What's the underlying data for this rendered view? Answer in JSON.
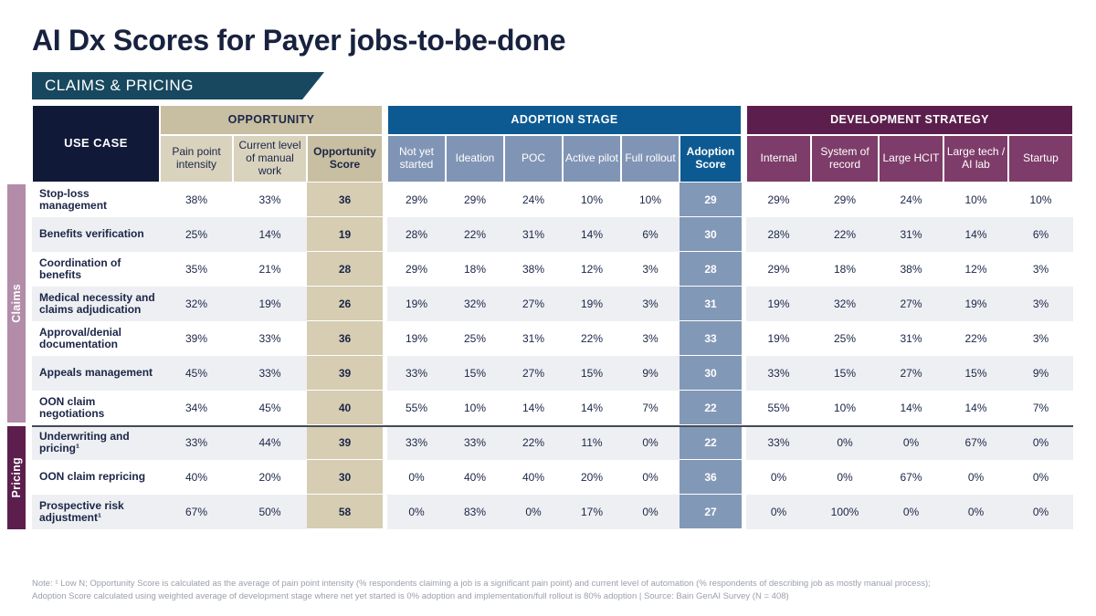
{
  "title": "AI Dx Scores for Payer jobs-to-be-done",
  "banner_label": "CLAIMS & PRICING",
  "chart_data": {
    "type": "table",
    "use_case_header": "USE CASE",
    "column_groups": [
      {
        "label": "OPPORTUNITY",
        "columns": [
          "Pain point intensity",
          "Current level of manual work",
          "Opportunity Score"
        ]
      },
      {
        "label": "ADOPTION STAGE",
        "columns": [
          "Not yet started",
          "Ideation",
          "POC",
          "Active pilot",
          "Full rollout",
          "Adoption Score"
        ]
      },
      {
        "label": "DEVELOPMENT STRATEGY",
        "columns": [
          "Internal",
          "System of record",
          "Large HCIT",
          "Large tech / AI lab",
          "Startup"
        ]
      }
    ],
    "sections": [
      {
        "label": "Claims",
        "rows": [
          {
            "use_case": "Stop-loss management",
            "pain_point_intensity": "38%",
            "current_level_manual_work": "33%",
            "opportunity_score": "36",
            "adoption_stages": [
              "29%",
              "29%",
              "24%",
              "10%",
              "10%"
            ],
            "adoption_score": "29",
            "development_strategy": [
              "29%",
              "29%",
              "24%",
              "10%",
              "10%"
            ]
          },
          {
            "use_case": "Benefits verification",
            "pain_point_intensity": "25%",
            "current_level_manual_work": "14%",
            "opportunity_score": "19",
            "adoption_stages": [
              "28%",
              "22%",
              "31%",
              "14%",
              "6%"
            ],
            "adoption_score": "30",
            "development_strategy": [
              "28%",
              "22%",
              "31%",
              "14%",
              "6%"
            ]
          },
          {
            "use_case": "Coordination of benefits",
            "pain_point_intensity": "35%",
            "current_level_manual_work": "21%",
            "opportunity_score": "28",
            "adoption_stages": [
              "29%",
              "18%",
              "38%",
              "12%",
              "3%"
            ],
            "adoption_score": "28",
            "development_strategy": [
              "29%",
              "18%",
              "38%",
              "12%",
              "3%"
            ]
          },
          {
            "use_case": "Medical necessity and claims adjudication",
            "pain_point_intensity": "32%",
            "current_level_manual_work": "19%",
            "opportunity_score": "26",
            "adoption_stages": [
              "19%",
              "32%",
              "27%",
              "19%",
              "3%"
            ],
            "adoption_score": "31",
            "development_strategy": [
              "19%",
              "32%",
              "27%",
              "19%",
              "3%"
            ]
          },
          {
            "use_case": "Approval/denial documentation",
            "pain_point_intensity": "39%",
            "current_level_manual_work": "33%",
            "opportunity_score": "36",
            "adoption_stages": [
              "19%",
              "25%",
              "31%",
              "22%",
              "3%"
            ],
            "adoption_score": "33",
            "development_strategy": [
              "19%",
              "25%",
              "31%",
              "22%",
              "3%"
            ]
          },
          {
            "use_case": "Appeals management",
            "pain_point_intensity": "45%",
            "current_level_manual_work": "33%",
            "opportunity_score": "39",
            "adoption_stages": [
              "33%",
              "15%",
              "27%",
              "15%",
              "9%"
            ],
            "adoption_score": "30",
            "development_strategy": [
              "33%",
              "15%",
              "27%",
              "15%",
              "9%"
            ]
          },
          {
            "use_case": "OON claim negotiations",
            "pain_point_intensity": "34%",
            "current_level_manual_work": "45%",
            "opportunity_score": "40",
            "adoption_stages": [
              "55%",
              "10%",
              "14%",
              "14%",
              "7%"
            ],
            "adoption_score": "22",
            "development_strategy": [
              "55%",
              "10%",
              "14%",
              "14%",
              "7%"
            ]
          }
        ]
      },
      {
        "label": "Pricing",
        "rows": [
          {
            "use_case": "Underwriting and pricing¹",
            "pain_point_intensity": "33%",
            "current_level_manual_work": "44%",
            "opportunity_score": "39",
            "adoption_stages": [
              "33%",
              "33%",
              "22%",
              "11%",
              "0%"
            ],
            "adoption_score": "22",
            "development_strategy": [
              "33%",
              "0%",
              "0%",
              "67%",
              "0%"
            ]
          },
          {
            "use_case": "OON claim repricing",
            "pain_point_intensity": "40%",
            "current_level_manual_work": "20%",
            "opportunity_score": "30",
            "adoption_stages": [
              "0%",
              "40%",
              "40%",
              "20%",
              "0%"
            ],
            "adoption_score": "36",
            "development_strategy": [
              "0%",
              "0%",
              "67%",
              "0%",
              "0%"
            ]
          },
          {
            "use_case": "Prospective risk adjustment¹",
            "pain_point_intensity": "67%",
            "current_level_manual_work": "50%",
            "opportunity_score": "58",
            "adoption_stages": [
              "0%",
              "83%",
              "0%",
              "17%",
              "0%"
            ],
            "adoption_score": "27",
            "development_strategy": [
              "0%",
              "100%",
              "0%",
              "0%",
              "0%"
            ]
          }
        ]
      }
    ]
  },
  "footnote": "Note: ¹ Low N; Opportunity Score is calculated as the average of pain point intensity (% respondents claiming a job is a significant pain point) and current level of automation (% respondents of describing job as mostly manual process); Adoption Score calculated using weighted average of development stage where net yet started is 0% adoption and implementation/full rollout is 80% adoption | Source: Bain GenAI Survey (N = 408)",
  "colors": {
    "title_navy": "#18223f",
    "banner_teal": "#17485f",
    "use_case_header": "#111938",
    "opportunity_tan_dark": "#c8bea1",
    "opportunity_tan_light": "#d9d3be",
    "opportunity_score_fill": "#d6cdb2",
    "adoption_blue_dark": "#0d5a92",
    "adoption_blue_gray": "#8095b5",
    "adoption_score_fill": "#8298b7",
    "development_plum_dark": "#5c1f4d",
    "development_plum_light": "#7d3c69",
    "claims_strip": "#b28ca8",
    "pricing_strip": "#5c1f4d",
    "row_alt": "#edeff2",
    "divider": "#454a58",
    "footnote_gray": "#9aa0a8"
  }
}
